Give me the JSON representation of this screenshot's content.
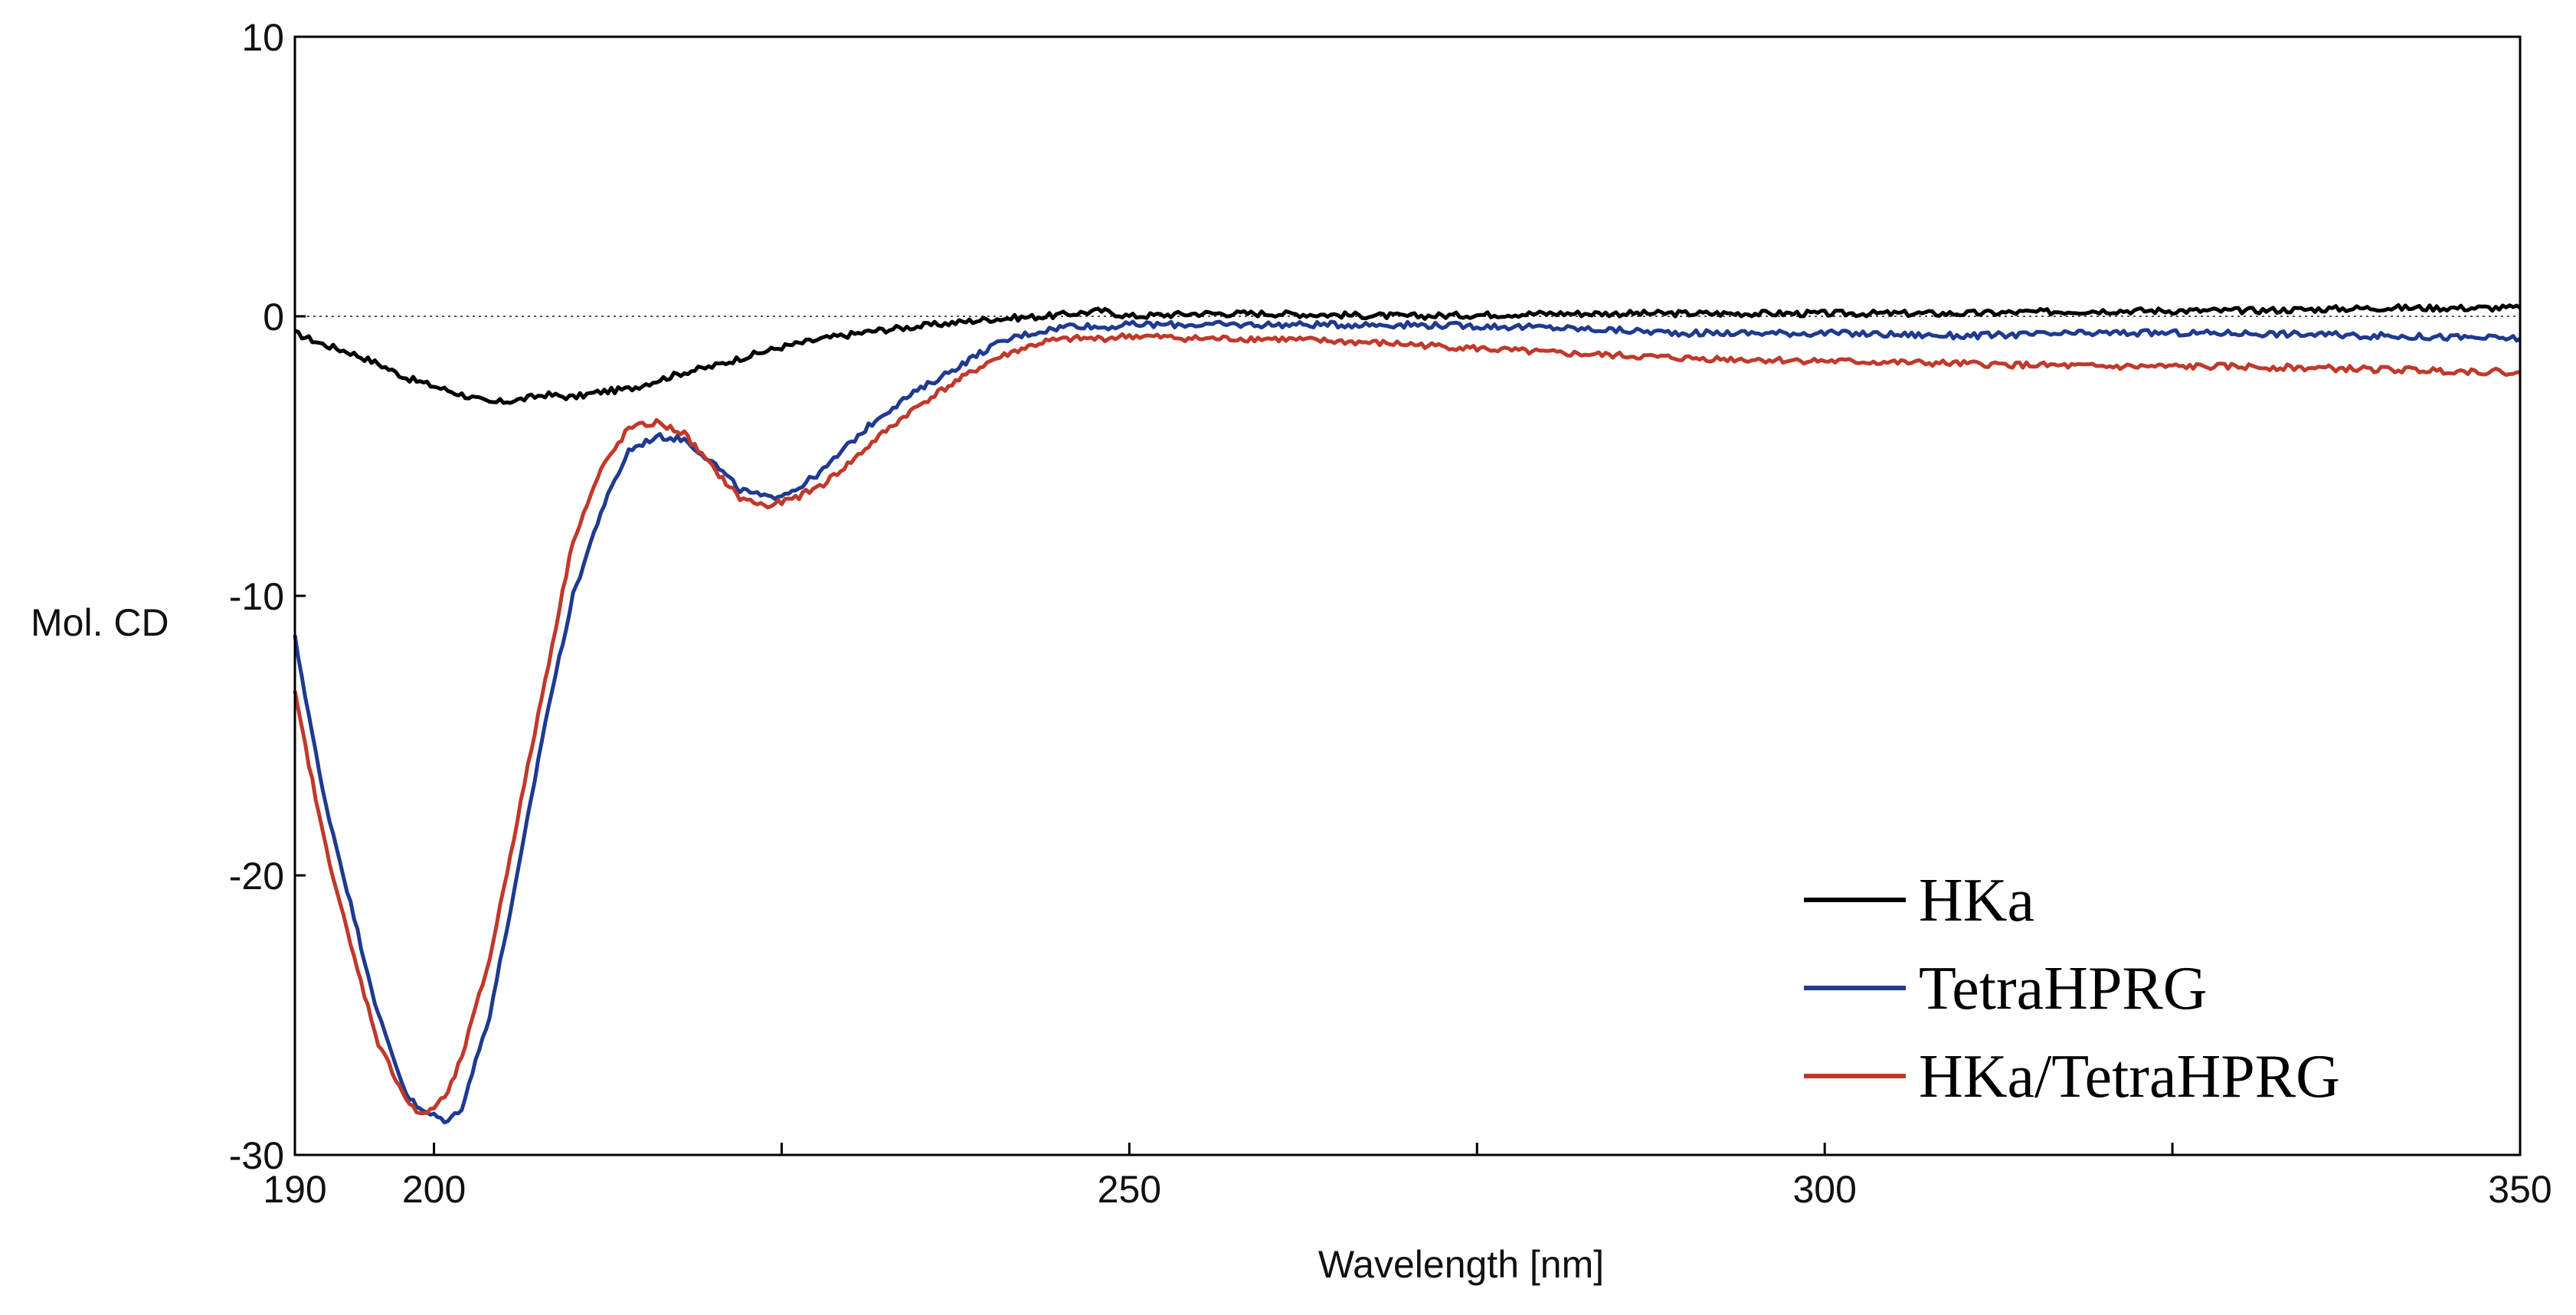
{
  "chart_data": {
    "type": "line",
    "xlabel": "Wavelength [nm]",
    "ylabel": "Mol. CD",
    "xlim": [
      190,
      350
    ],
    "ylim": [
      -30,
      10
    ],
    "x_ticks": [
      190,
      200,
      250,
      300,
      350
    ],
    "x_minor_ticks": [
      225,
      275,
      325
    ],
    "y_ticks": [
      10,
      0,
      -10,
      -20,
      -30
    ],
    "zero_line": true,
    "grid": false,
    "legend_position": "bottom-right",
    "series": [
      {
        "name": "HKa",
        "color": "#000000",
        "x": [
          190,
          192,
          194,
          196,
          198,
          200,
          202,
          204,
          206,
          208,
          210,
          212,
          214,
          216,
          218,
          220,
          222,
          225,
          228,
          232,
          236,
          240,
          244,
          248,
          250,
          255,
          260,
          270,
          280,
          290,
          300,
          310,
          320,
          330,
          340,
          350
        ],
        "y": [
          -0.6,
          -1.0,
          -1.3,
          -1.7,
          -2.2,
          -2.5,
          -2.8,
          -3.1,
          -3.0,
          -2.8,
          -2.9,
          -2.7,
          -2.6,
          -2.3,
          -2.0,
          -1.8,
          -1.5,
          -1.1,
          -0.8,
          -0.5,
          -0.3,
          -0.1,
          0.0,
          0.2,
          0.0,
          0.1,
          0.1,
          0.0,
          0.1,
          0.1,
          0.1,
          0.1,
          0.2,
          0.2,
          0.3,
          0.3
        ]
      },
      {
        "name": "TetraHPRG",
        "color": "#1f3a8f",
        "x": [
          190,
          192,
          194,
          196,
          198,
          199,
          200,
          201,
          202,
          204,
          206,
          208,
          210,
          212,
          214,
          216,
          218,
          220,
          222,
          224,
          226,
          228,
          230,
          232,
          234,
          236,
          238,
          240,
          242,
          244,
          246,
          248,
          250,
          255,
          260,
          270,
          280,
          290,
          300,
          310,
          320,
          330,
          340,
          350
        ],
        "y": [
          -11.5,
          -17.0,
          -21.0,
          -25.0,
          -27.8,
          -28.4,
          -28.6,
          -28.8,
          -28.3,
          -25.0,
          -20.0,
          -14.5,
          -10.0,
          -7.0,
          -4.8,
          -4.3,
          -4.4,
          -5.2,
          -6.2,
          -6.5,
          -6.2,
          -5.5,
          -4.5,
          -3.6,
          -2.9,
          -2.3,
          -1.7,
          -1.1,
          -0.7,
          -0.5,
          -0.3,
          -0.4,
          -0.3,
          -0.3,
          -0.3,
          -0.3,
          -0.4,
          -0.6,
          -0.6,
          -0.7,
          -0.6,
          -0.6,
          -0.7,
          -0.8
        ]
      },
      {
        "name": "HKa/TetraHPRG",
        "color": "#c0392b",
        "x": [
          190,
          192,
          194,
          196,
          198,
          199,
          200,
          201,
          202,
          204,
          206,
          208,
          210,
          212,
          214,
          216,
          218,
          220,
          222,
          224,
          226,
          228,
          230,
          232,
          234,
          236,
          238,
          240,
          242,
          244,
          246,
          248,
          250,
          255,
          260,
          270,
          280,
          290,
          300,
          310,
          320,
          330,
          340,
          350
        ],
        "y": [
          -13.5,
          -18.5,
          -22.5,
          -26.0,
          -28.0,
          -28.6,
          -28.3,
          -27.8,
          -26.5,
          -23.0,
          -18.0,
          -13.0,
          -8.0,
          -5.5,
          -4.0,
          -3.8,
          -4.2,
          -5.4,
          -6.5,
          -6.8,
          -6.5,
          -6.0,
          -5.2,
          -4.3,
          -3.5,
          -2.8,
          -2.2,
          -1.6,
          -1.2,
          -0.9,
          -0.8,
          -0.8,
          -0.7,
          -0.8,
          -0.8,
          -1.0,
          -1.3,
          -1.5,
          -1.6,
          -1.7,
          -1.8,
          -1.8,
          -1.9,
          -2.0
        ]
      }
    ]
  }
}
